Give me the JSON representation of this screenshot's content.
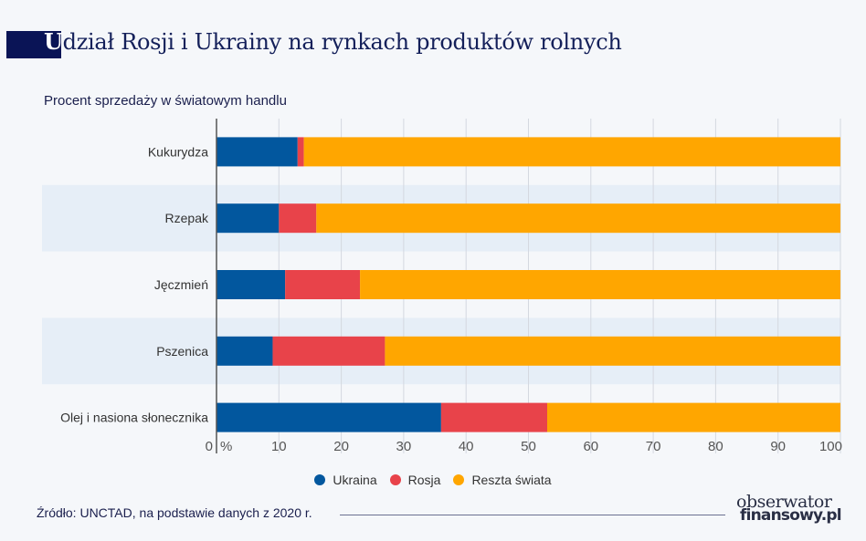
{
  "title_first_letter": "U",
  "title_rest": "dział Rosji i Ukrainy na rynkach produktów rolnych",
  "source": "Źródło:  UNCTAD, na podstawie danych z 2020 r.",
  "logo": {
    "line1": "obserwator",
    "line2": "finansowy.pl"
  },
  "chart_data": {
    "type": "bar",
    "orientation": "horizontal",
    "stacked": true,
    "subtitle": "Procent sprzedaży w światowym handlu",
    "categories": [
      "Kukurydza",
      "Rzepak",
      "Jęczmień",
      "Pszenica",
      "Olej i nasiona słonecznika"
    ],
    "series": [
      {
        "name": "Ukraina",
        "color": "#02579e",
        "values": [
          13,
          10,
          11,
          9,
          36
        ]
      },
      {
        "name": "Rosja",
        "color": "#e8434a",
        "values": [
          1,
          6,
          12,
          18,
          17
        ]
      },
      {
        "name": "Reszta świata",
        "color": "#ffa600",
        "values": [
          86,
          84,
          77,
          73,
          47
        ]
      }
    ],
    "xlim": [
      0,
      100
    ],
    "xticks": [
      "0",
      "10",
      "20",
      "30",
      "40",
      "50",
      "60",
      "70",
      "80",
      "90",
      "100"
    ],
    "x_unit": "%",
    "grid": true,
    "legend_position": "bottom"
  }
}
